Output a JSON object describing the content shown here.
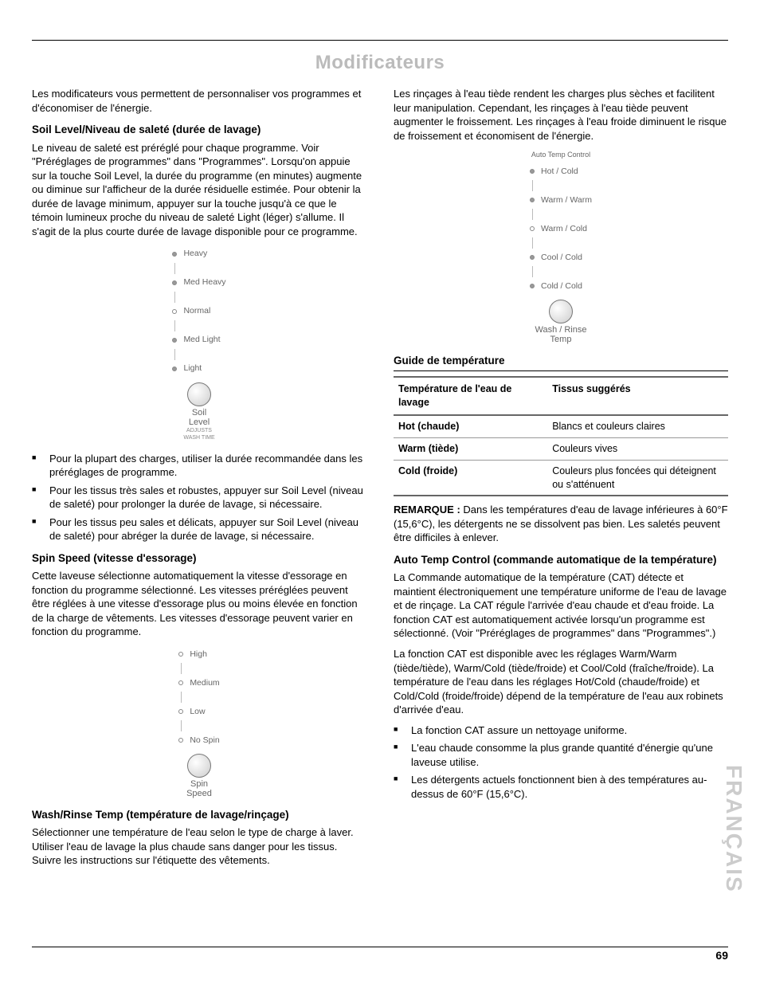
{
  "title": "Modificateurs",
  "page_number": "69",
  "side_label": "FRANÇAIS",
  "left": {
    "intro": "Les modificateurs vous permettent de personnaliser vos programmes et d'économiser de l'énergie.",
    "soil": {
      "heading": "Soil Level/Niveau de saleté (durée de lavage)",
      "body": "Le niveau de saleté est préréglé pour chaque programme. Voir \"Préréglages de programmes\" dans \"Programmes\". Lorsqu'on appuie sur la touche Soil Level, la durée du programme (en minutes) augmente ou diminue sur l'afficheur de la durée résiduelle estimée. Pour obtenir la durée de lavage minimum, appuyer sur la touche jusqu'à ce que le témoin lumineux proche du niveau de saleté Light (léger) s'allume. Il s'agit de la plus courte durée de lavage disponible pour ce programme.",
      "scale": [
        {
          "label": "Heavy",
          "filled": true
        },
        {
          "label": "Med Heavy",
          "filled": true
        },
        {
          "label": "Normal",
          "filled": false
        },
        {
          "label": "Med Light",
          "filled": true
        },
        {
          "label": "Light",
          "filled": true
        }
      ],
      "knob_label": "Soil\nLevel",
      "knob_sub": "ADJUSTS\nWASH TIME",
      "bullets": [
        "Pour la plupart des charges, utiliser la durée recommandée dans les préréglages de programme.",
        "Pour les tissus très sales et robustes, appuyer sur Soil Level (niveau de saleté) pour prolonger la durée de lavage, si nécessaire.",
        "Pour les tissus peu sales et délicats, appuyer sur Soil Level (niveau de saleté) pour abréger la durée de lavage, si nécessaire."
      ]
    },
    "spin": {
      "heading": "Spin Speed (vitesse d'essorage)",
      "body": "Cette laveuse sélectionne automatiquement la vitesse d'essorage en fonction du programme sélectionné. Les vitesses préréglées peuvent être réglées à une vitesse d'essorage plus ou moins élevée en fonction de la charge de vêtements. Les vitesses d'essorage peuvent varier en fonction du programme.",
      "scale": [
        {
          "label": "High",
          "filled": false
        },
        {
          "label": "Medium",
          "filled": false
        },
        {
          "label": "Low",
          "filled": false
        },
        {
          "label": "No Spin",
          "filled": false
        }
      ],
      "knob_label": "Spin\nSpeed"
    },
    "wash_rinse": {
      "heading": "Wash/Rinse Temp (température de lavage/rinçage)",
      "body": "Sélectionner une température de l'eau selon le type de charge à laver. Utiliser l'eau de lavage la plus chaude sans danger pour les tissus. Suivre les instructions sur l'étiquette des vêtements."
    }
  },
  "right": {
    "intro": "Les rinçages à l'eau tiède rendent les charges plus sèches et facilitent leur manipulation. Cependant, les rinçages à l'eau tiède peuvent augmenter le froissement. Les rinçages à l'eau froide diminuent le risque de froissement et économisent de l'énergie.",
    "temp_dial": {
      "top_label": "Auto Temp Control",
      "scale": [
        {
          "label": "Hot / Cold",
          "filled": true
        },
        {
          "label": "Warm / Warm",
          "filled": true
        },
        {
          "label": "Warm / Cold",
          "filled": false
        },
        {
          "label": "Cool / Cold",
          "filled": true
        },
        {
          "label": "Cold / Cold",
          "filled": true
        }
      ],
      "knob_label": "Wash / Rinse\nTemp"
    },
    "guide": {
      "heading": "Guide de température",
      "col1_header": "Température de l'eau de lavage",
      "col2_header": "Tissus suggérés",
      "rows": [
        {
          "temp": "Hot (chaude)",
          "fabric": "Blancs et couleurs claires"
        },
        {
          "temp": "Warm (tiède)",
          "fabric": "Couleurs vives"
        },
        {
          "temp": "Cold (froide)",
          "fabric": "Couleurs plus foncées qui déteignent ou s'atténuent"
        }
      ]
    },
    "remark_label": "REMARQUE :",
    "remark": " Dans les températures d'eau de lavage inférieures à 60°F (15,6°C), les détergents ne se dissolvent pas bien. Les saletés peuvent être difficiles à enlever.",
    "auto": {
      "heading": "Auto Temp Control (commande automatique de la température)",
      "p1": "La Commande automatique de la température (CAT) détecte et maintient électroniquement une température uniforme de l'eau de lavage et de rinçage. La CAT régule l'arrivée d'eau chaude et d'eau froide. La fonction CAT est automatiquement activée lorsqu'un programme est sélectionné. (Voir \"Préréglages de programmes\" dans \"Programmes\".)",
      "p2": "La fonction CAT est disponible avec les réglages Warm/Warm (tiède/tiède), Warm/Cold (tiède/froide) et Cool/Cold (fraîche/froide). La température de l'eau dans les réglages Hot/Cold (chaude/froide) et Cold/Cold (froide/froide) dépend de la température de l'eau aux robinets d'arrivée d'eau.",
      "bullets": [
        "La fonction CAT assure un nettoyage uniforme.",
        "L'eau chaude consomme la plus grande quantité d'énergie qu'une laveuse utilise.",
        "Les détergents actuels fonctionnent bien à des températures au-dessus de 60°F (15,6°C)."
      ]
    }
  }
}
